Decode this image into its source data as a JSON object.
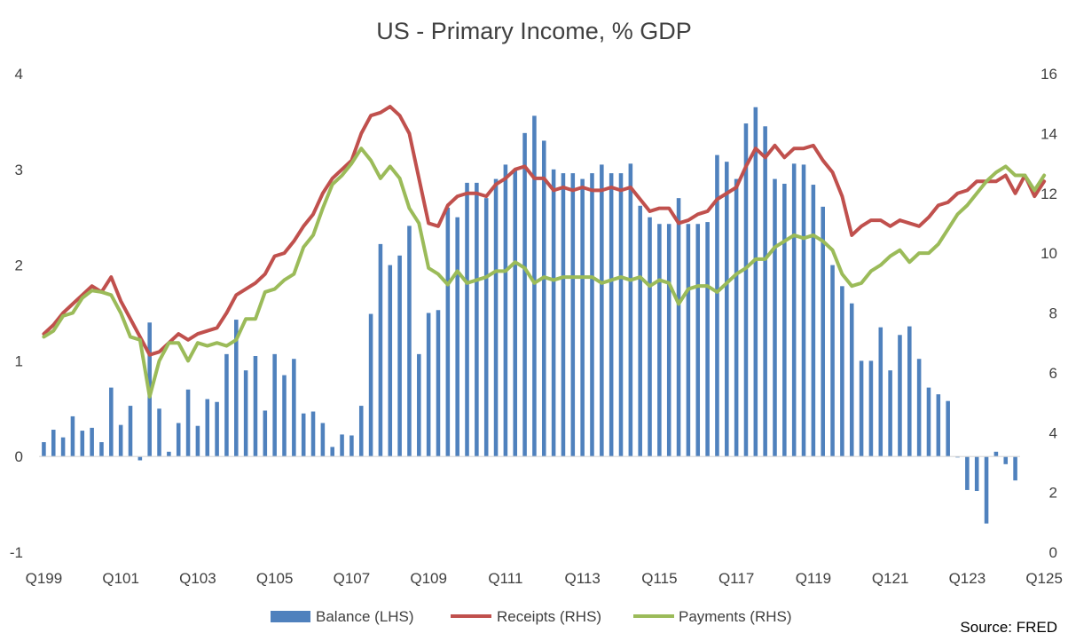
{
  "chart_data": {
    "type": "bar+line",
    "title": "US - Primary Income, % GDP",
    "source": "Source: FRED",
    "x_tick_labels": [
      "Q199",
      "Q101",
      "Q103",
      "Q105",
      "Q107",
      "Q109",
      "Q111",
      "Q113",
      "Q115",
      "Q117",
      "Q119",
      "Q121",
      "Q123",
      "Q125"
    ],
    "left_axis": {
      "label": "LHS",
      "ticks": [
        -1,
        0,
        1,
        2,
        3,
        4
      ],
      "ylim": [
        -1,
        4
      ]
    },
    "right_axis": {
      "label": "RHS",
      "ticks": [
        0,
        2,
        4,
        6,
        8,
        10,
        12,
        14,
        16
      ],
      "ylim": [
        0,
        16
      ]
    },
    "grid": false,
    "legend_position": "bottom",
    "series": [
      {
        "name": "Balance (LHS)",
        "type": "bar",
        "axis": "left",
        "color": "#4f81bd",
        "values": [
          0.15,
          0.28,
          0.2,
          0.42,
          0.27,
          0.3,
          0.15,
          0.72,
          0.33,
          0.53,
          -0.04,
          1.4,
          0.5,
          0.05,
          0.35,
          0.7,
          0.32,
          0.6,
          0.57,
          1.07,
          1.43,
          0.9,
          1.05,
          0.48,
          1.07,
          0.85,
          1.02,
          0.45,
          0.47,
          0.35,
          0.1,
          0.23,
          0.22,
          0.53,
          1.49,
          2.22,
          2.0,
          2.1,
          2.41,
          1.07,
          1.5,
          1.53,
          2.6,
          2.5,
          2.86,
          2.86,
          2.7,
          2.9,
          3.05,
          3.0,
          3.38,
          3.56,
          3.3,
          3.0,
          2.96,
          2.96,
          2.9,
          2.96,
          3.05,
          2.96,
          2.96,
          3.06,
          2.62,
          2.5,
          2.43,
          2.43,
          2.7,
          2.43,
          2.43,
          2.45,
          3.15,
          3.08,
          2.9,
          3.48,
          3.65,
          3.45,
          2.9,
          2.85,
          3.06,
          3.05,
          2.84,
          2.61,
          2.0,
          1.78,
          1.6,
          1.0,
          1.0,
          1.35,
          0.9,
          1.27,
          1.36,
          1.02,
          0.72,
          0.65,
          0.58,
          -0.01,
          -0.35,
          -0.36,
          -0.7,
          0.05,
          -0.08,
          -0.25
        ]
      },
      {
        "name": "Receipts (RHS)",
        "type": "line",
        "axis": "right",
        "color": "#c0504d",
        "values": [
          7.3,
          7.6,
          8.0,
          8.3,
          8.6,
          8.9,
          8.7,
          9.2,
          8.4,
          7.8,
          7.2,
          6.6,
          6.7,
          7.0,
          7.3,
          7.1,
          7.3,
          7.4,
          7.5,
          8.0,
          8.6,
          8.8,
          9.0,
          9.3,
          9.9,
          10.0,
          10.4,
          10.9,
          11.3,
          12.0,
          12.5,
          12.8,
          13.1,
          14.0,
          14.6,
          14.7,
          14.9,
          14.6,
          14.0,
          12.5,
          11.0,
          10.9,
          11.6,
          11.9,
          12.0,
          12.0,
          11.9,
          12.3,
          12.5,
          12.8,
          12.9,
          12.5,
          12.5,
          12.1,
          12.2,
          12.1,
          12.2,
          12.1,
          12.1,
          12.2,
          12.1,
          12.2,
          11.8,
          11.4,
          11.5,
          11.5,
          11.0,
          11.1,
          11.3,
          11.4,
          11.8,
          12.0,
          12.2,
          12.9,
          13.5,
          13.2,
          13.6,
          13.2,
          13.5,
          13.5,
          13.6,
          13.1,
          12.7,
          11.9,
          10.6,
          10.9,
          11.1,
          11.1,
          10.9,
          11.1,
          11.0,
          10.9,
          11.2,
          11.6,
          11.7,
          12.0,
          12.1,
          12.4,
          12.4,
          12.4,
          12.6,
          12.0,
          12.6,
          11.9,
          12.4
        ]
      },
      {
        "name": "Payments (RHS)",
        "type": "line",
        "axis": "right",
        "color": "#9bbb59",
        "values": [
          7.2,
          7.4,
          7.9,
          8.0,
          8.5,
          8.75,
          8.7,
          8.6,
          8.0,
          7.2,
          7.1,
          5.2,
          6.4,
          7.0,
          7.0,
          6.4,
          7.0,
          6.9,
          7.0,
          6.9,
          7.1,
          7.8,
          7.8,
          8.7,
          8.8,
          9.1,
          9.3,
          10.2,
          10.6,
          11.5,
          12.3,
          12.6,
          13.0,
          13.5,
          13.1,
          12.5,
          12.9,
          12.5,
          11.5,
          11.0,
          9.5,
          9.3,
          8.95,
          9.4,
          9.0,
          9.1,
          9.2,
          9.4,
          9.4,
          9.7,
          9.5,
          9.0,
          9.2,
          9.1,
          9.2,
          9.2,
          9.2,
          9.2,
          9.0,
          9.1,
          9.2,
          9.1,
          9.2,
          8.9,
          9.1,
          9.0,
          8.3,
          8.8,
          8.9,
          8.9,
          8.7,
          9.0,
          9.3,
          9.5,
          9.8,
          9.8,
          10.2,
          10.4,
          10.6,
          10.5,
          10.6,
          10.4,
          10.1,
          9.3,
          8.9,
          9.0,
          9.4,
          9.6,
          9.9,
          10.1,
          9.7,
          10.0,
          10.0,
          10.3,
          10.8,
          11.3,
          11.6,
          12.0,
          12.4,
          12.7,
          12.9,
          12.6,
          12.6,
          12.1,
          12.6
        ]
      }
    ]
  },
  "colors": {
    "text": "#404040",
    "axis_line": "#d9d9d9"
  }
}
